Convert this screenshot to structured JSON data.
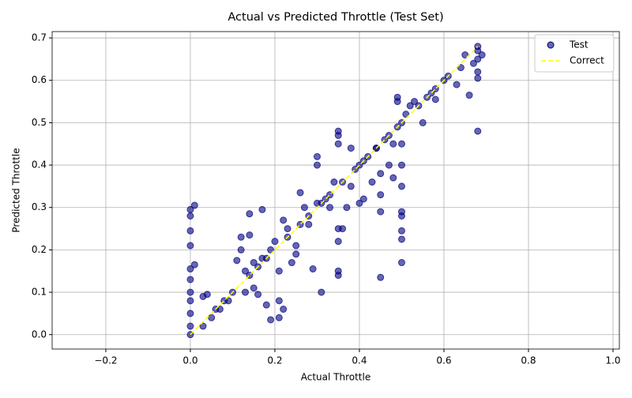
{
  "chart_data": {
    "type": "scatter",
    "title": "Actual vs Predicted Throttle (Test Set)",
    "x_label": "Actual Throttle",
    "y_label": "Predicted Throttle",
    "xlim": [
      -0.327,
      1.015
    ],
    "ylim": [
      -0.034,
      0.715
    ],
    "xticks": [
      {
        "value": -0.2,
        "label": "−0.2"
      },
      {
        "value": 0,
        "label": "0.0"
      },
      {
        "value": 0.2,
        "label": "0.2"
      },
      {
        "value": 0.4,
        "label": "0.4"
      },
      {
        "value": 0.6,
        "label": "0.6"
      },
      {
        "value": 0.8,
        "label": "0.8"
      },
      {
        "value": 1,
        "label": "1.0"
      }
    ],
    "yticks": [
      {
        "value": 0,
        "label": "0.0"
      },
      {
        "value": 0.1,
        "label": "0.1"
      },
      {
        "value": 0.2,
        "label": "0.2"
      },
      {
        "value": 0.3,
        "label": "0.3"
      },
      {
        "value": 0.4,
        "label": "0.4"
      },
      {
        "value": 0.5,
        "label": "0.5"
      },
      {
        "value": 0.6,
        "label": "0.6"
      },
      {
        "value": 0.7,
        "label": "0.7"
      }
    ],
    "grid": true,
    "legend": "upper right",
    "series": [
      {
        "name": "Test",
        "color": "#000080",
        "x": [
          0,
          0,
          0,
          0,
          0,
          0,
          0,
          0,
          0,
          0,
          0,
          0.01,
          0.01,
          0.03,
          0.04,
          0.03,
          0.05,
          0.07,
          0.09,
          0.1,
          0.11,
          0.12,
          0.12,
          0.14,
          0.14,
          0.17,
          0.13,
          0.15,
          0.16,
          0.18,
          0.19,
          0.21,
          0.21,
          0.22,
          0.13,
          0.15,
          0.17,
          0.19,
          0.2,
          0.21,
          0.22,
          0.23,
          0.24,
          0.25,
          0.25,
          0.26,
          0.27,
          0.28,
          0.29,
          0.3,
          0.3,
          0.31,
          0.3,
          0.32,
          0.33,
          0.34,
          0.35,
          0.35,
          0.35,
          0.35,
          0.35,
          0.35,
          0.35,
          0.36,
          0.37,
          0.38,
          0.38,
          0.4,
          0.41,
          0.4,
          0.42,
          0.43,
          0.44,
          0.45,
          0.45,
          0.45,
          0.45,
          0.47,
          0.48,
          0.48,
          0.49,
          0.49,
          0.49,
          0.5,
          0.5,
          0.5,
          0.5,
          0.5,
          0.5,
          0.5,
          0.5,
          0.5,
          0.51,
          0.52,
          0.53,
          0.55,
          0.56,
          0.58,
          0.58,
          0.6,
          0.61,
          0.63,
          0.64,
          0.65,
          0.66,
          0.67,
          0.68,
          0.68,
          0.68,
          0.68,
          0.68,
          0.68,
          0.69,
          0.06,
          0.08,
          0.14,
          0.16,
          0.18,
          0.23,
          0.26,
          0.28,
          0.31,
          0.33,
          0.36,
          0.39,
          0.41,
          0.44,
          0.46,
          0.47,
          0.54,
          0.57
        ],
        "values": [
          0,
          0.02,
          0.05,
          0.08,
          0.1,
          0.13,
          0.155,
          0.21,
          0.245,
          0.28,
          0.295,
          0.305,
          0.165,
          0.09,
          0.095,
          0.02,
          0.04,
          0.06,
          0.08,
          0.1,
          0.175,
          0.2,
          0.23,
          0.235,
          0.285,
          0.295,
          0.1,
          0.11,
          0.095,
          0.07,
          0.035,
          0.04,
          0.08,
          0.06,
          0.15,
          0.17,
          0.18,
          0.2,
          0.22,
          0.15,
          0.27,
          0.25,
          0.17,
          0.21,
          0.19,
          0.335,
          0.3,
          0.26,
          0.155,
          0.42,
          0.4,
          0.1,
          0.31,
          0.32,
          0.3,
          0.36,
          0.48,
          0.47,
          0.45,
          0.25,
          0.22,
          0.15,
          0.14,
          0.25,
          0.3,
          0.44,
          0.35,
          0.31,
          0.32,
          0.4,
          0.42,
          0.36,
          0.44,
          0.38,
          0.33,
          0.29,
          0.135,
          0.4,
          0.45,
          0.37,
          0.56,
          0.55,
          0.49,
          0.5,
          0.45,
          0.4,
          0.35,
          0.29,
          0.28,
          0.245,
          0.225,
          0.17,
          0.52,
          0.54,
          0.55,
          0.5,
          0.56,
          0.58,
          0.555,
          0.6,
          0.61,
          0.59,
          0.63,
          0.66,
          0.565,
          0.64,
          0.68,
          0.67,
          0.65,
          0.62,
          0.605,
          0.48,
          0.66,
          0.06,
          0.08,
          0.14,
          0.16,
          0.18,
          0.23,
          0.26,
          0.28,
          0.31,
          0.33,
          0.36,
          0.39,
          0.41,
          0.44,
          0.46,
          0.47,
          0.54,
          0.57
        ]
      },
      {
        "name": "Correct",
        "color": "#ffff00",
        "x": [
          0,
          0.68
        ],
        "values": [
          0,
          0.68
        ]
      }
    ]
  }
}
